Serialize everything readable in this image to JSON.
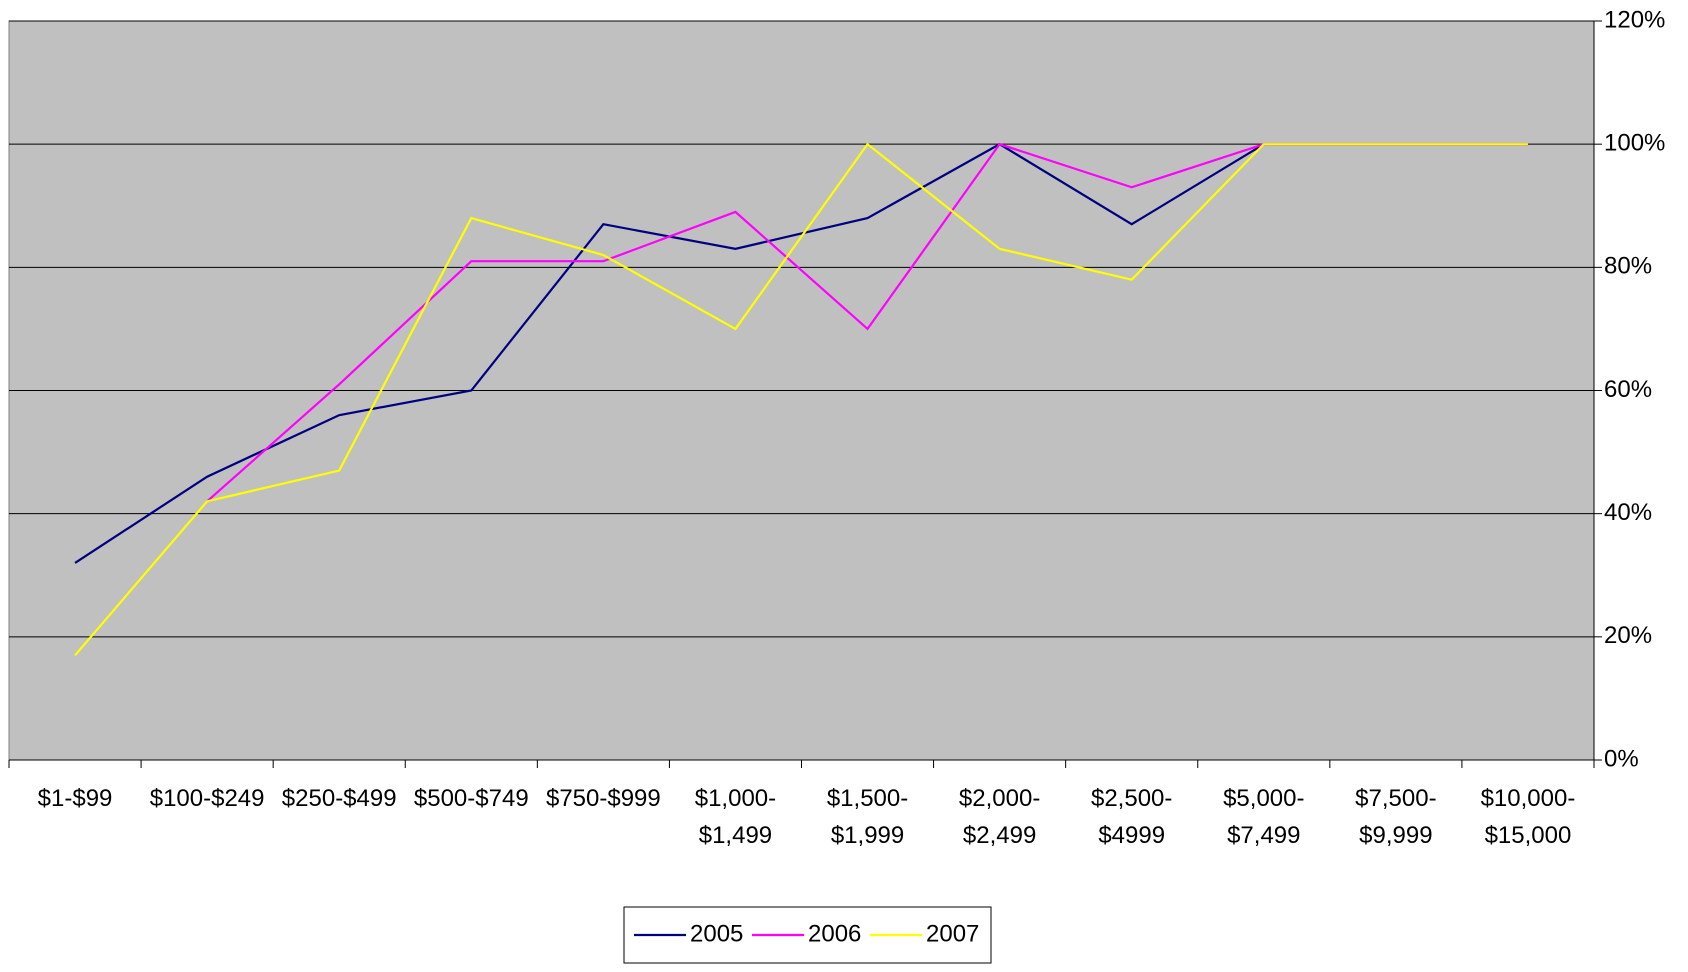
{
  "chart_data": {
    "type": "line",
    "categories": [
      "$1-$99",
      "$100-$249",
      "$250-$499",
      "$500-$749",
      "$750-$999",
      "$1,000-\n$1,499",
      "$1,500-\n$1,999",
      "$2,000-\n$2,499",
      "$2,500-\n$4999",
      "$5,000-\n$7,499",
      "$7,500-\n$9,999",
      "$10,000-\n$15,000"
    ],
    "series": [
      {
        "name": "2005",
        "color": "#000080",
        "values": [
          32,
          46,
          56,
          60,
          87,
          83,
          88,
          100,
          87,
          100,
          100,
          100
        ]
      },
      {
        "name": "2006",
        "color": "#ff00ff",
        "values": [
          null,
          42,
          61,
          81,
          81,
          89,
          70,
          100,
          93,
          100,
          100,
          100
        ]
      },
      {
        "name": "2007",
        "color": "#ffff00",
        "values": [
          17,
          42,
          47,
          88,
          82,
          70,
          100,
          83,
          78,
          100,
          100,
          100
        ]
      }
    ],
    "ylim": [
      0,
      120
    ],
    "yticks": [
      {
        "value": 0,
        "label": "0%"
      },
      {
        "value": 20,
        "label": "20%"
      },
      {
        "value": 40,
        "label": "40%"
      },
      {
        "value": 60,
        "label": "60%"
      },
      {
        "value": 80,
        "label": "80%"
      },
      {
        "value": 100,
        "label": "100%"
      },
      {
        "value": 120,
        "label": "120%"
      }
    ],
    "grid": true,
    "legend": "bottom",
    "background": "#c0c0c0"
  }
}
